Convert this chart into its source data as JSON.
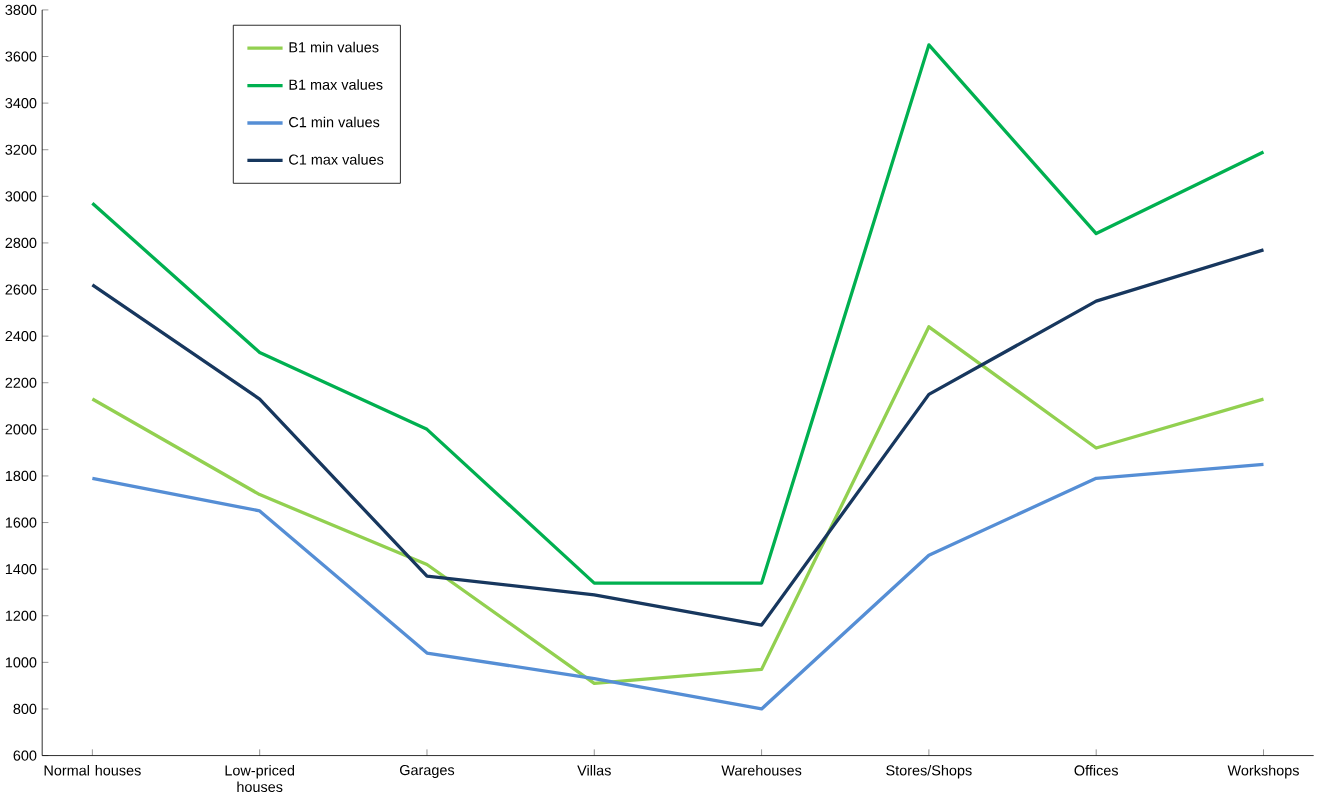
{
  "chart_data": {
    "type": "line",
    "categories": [
      "Normal houses",
      "Low-priced houses",
      "Garages",
      "Villas",
      "Warehouses",
      "Stores/Shops",
      "Offices",
      "Workshops"
    ],
    "series": [
      {
        "name": "B1 min values",
        "color": "#92d050",
        "values": [
          2130,
          1720,
          1420,
          910,
          970,
          2440,
          1920,
          2130
        ]
      },
      {
        "name": "B1 max values",
        "color": "#00b050",
        "values": [
          2970,
          2330,
          2000,
          1340,
          1340,
          3650,
          2840,
          3190
        ]
      },
      {
        "name": "C1 min values",
        "color": "#558ed5",
        "values": [
          1790,
          1650,
          1040,
          930,
          800,
          1460,
          1790,
          1850
        ]
      },
      {
        "name": "C1 max values",
        "color": "#17375e",
        "values": [
          2620,
          2130,
          1370,
          1290,
          1160,
          2150,
          2550,
          2770
        ]
      }
    ],
    "ylim": [
      600,
      3800
    ],
    "yticks": [
      600,
      800,
      1000,
      1200,
      1400,
      1600,
      1800,
      2000,
      2200,
      2400,
      2600,
      2800,
      3000,
      3200,
      3400,
      3600,
      3800
    ],
    "grid": false,
    "legend": "top left",
    "marker": "none",
    "line_style": "solid"
  }
}
